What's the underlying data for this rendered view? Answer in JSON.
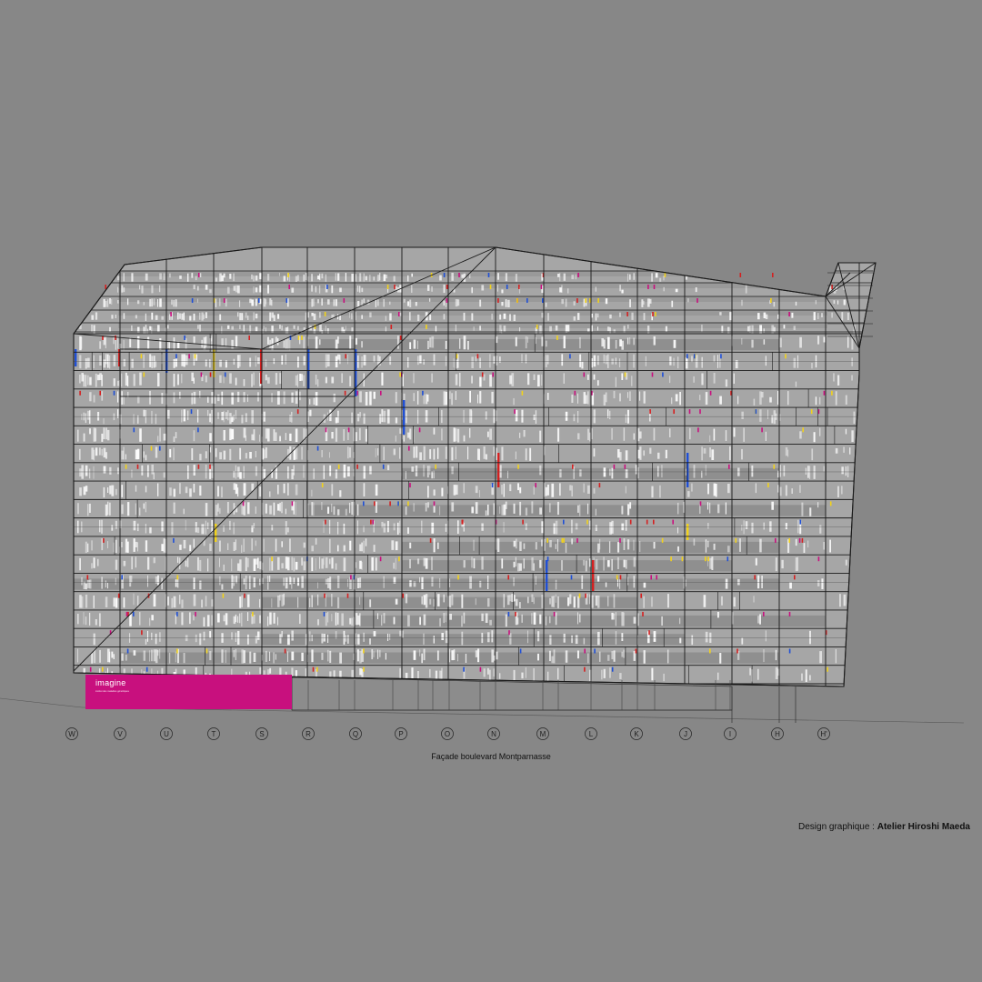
{
  "drawing": {
    "caption": "Façade boulevard Montparnasse",
    "credit_prefix": "Design graphique : ",
    "credit_name": "Atelier Hiroshi Maeda",
    "grid_axes": [
      "W",
      "V",
      "U",
      "T",
      "S",
      "R",
      "Q",
      "P",
      "O",
      "N",
      "M",
      "L",
      "K",
      "J",
      "I",
      "H",
      "H'"
    ],
    "sign": {
      "brand": "imagine",
      "tagline": "institut des maladies génétiques",
      "color": "#c8107e"
    },
    "colors": {
      "background": "#878787",
      "facade": "#a6a6a6",
      "line": "#1a1a1a",
      "accent_red": "#d42020",
      "accent_blue": "#1f4fd6",
      "accent_yellow": "#f2d21a",
      "accent_magenta": "#c8107e"
    }
  }
}
